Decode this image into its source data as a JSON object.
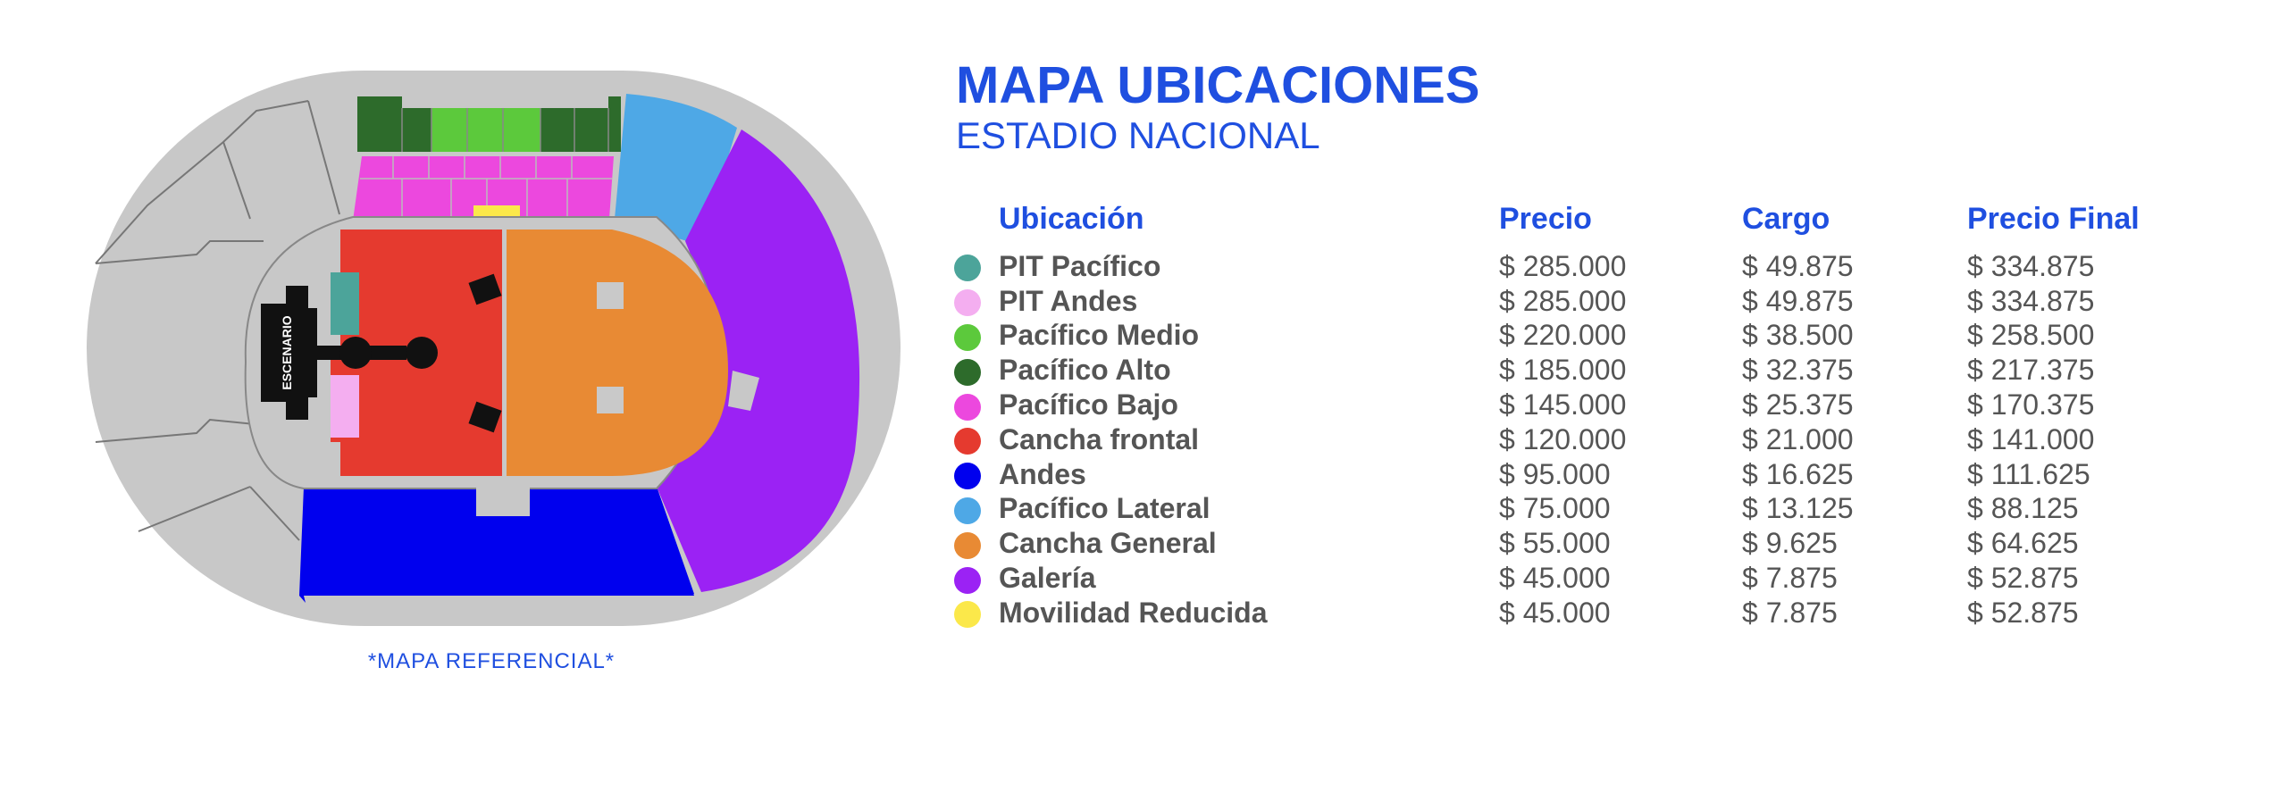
{
  "header": {
    "title": "MAPA UBICACIONES",
    "subtitle": "ESTADIO NACIONAL"
  },
  "map": {
    "stage_label": "ESCENARIO",
    "note": "*MAPA REFERENCIAL*"
  },
  "table": {
    "columns": [
      "Ubicación",
      "Precio",
      "Cargo",
      "Precio Final"
    ],
    "rows": [
      {
        "name": "PIT Pacífico",
        "color": "#4ca49a",
        "price": "$ 285.000",
        "cargo": "$ 49.875",
        "final": "$ 334.875"
      },
      {
        "name": "PIT Andes",
        "color": "#f4aef0",
        "price": "$ 285.000",
        "cargo": "$ 49.875",
        "final": "$ 334.875"
      },
      {
        "name": "Pacífico Medio",
        "color": "#5cc93c",
        "price": "$ 220.000",
        "cargo": "$ 38.500",
        "final": "$ 258.500"
      },
      {
        "name": "Pacífico Alto",
        "color": "#2d6b2b",
        "price": "$ 185.000",
        "cargo": "$ 32.375",
        "final": "$ 217.375"
      },
      {
        "name": "Pacífico Bajo",
        "color": "#ec48de",
        "price": "$ 145.000",
        "cargo": "$ 25.375",
        "final": "$ 170.375"
      },
      {
        "name": "Cancha frontal",
        "color": "#e53a2f",
        "price": "$ 120.000",
        "cargo": "$ 21.000",
        "final": "$ 141.000"
      },
      {
        "name": "Andes",
        "color": "#0000ee",
        "price": "$ 95.000",
        "cargo": "$ 16.625",
        "final": "$ 111.625"
      },
      {
        "name": "Pacífico Lateral",
        "color": "#4ea8e6",
        "price": "$ 75.000",
        "cargo": "$ 13.125",
        "final": "$ 88.125"
      },
      {
        "name": "Cancha General",
        "color": "#e88a34",
        "price": "$ 55.000",
        "cargo": "$ 9.625",
        "final": "$ 64.625"
      },
      {
        "name": "Galería",
        "color": "#9b22f4",
        "price": "$ 45.000",
        "cargo": "$ 7.875",
        "final": "$ 52.875"
      },
      {
        "name": "Movilidad Reducida",
        "color": "#fbe84a",
        "price": "$ 45.000",
        "cargo": "$ 7.875",
        "final": "$ 52.875"
      }
    ]
  }
}
